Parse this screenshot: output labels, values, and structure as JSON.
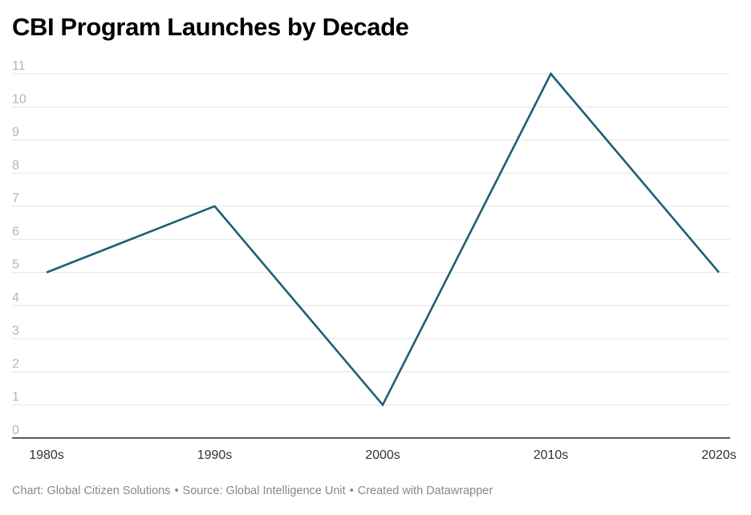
{
  "chart_data": {
    "type": "line",
    "title": "CBI Program Launches by Decade",
    "categories": [
      "1980s",
      "1990s",
      "2000s",
      "2010s",
      "2020s"
    ],
    "series": [
      {
        "name": "CBI Program Launches",
        "values": [
          5,
          7,
          1,
          11,
          5
        ]
      }
    ],
    "yticks": [
      0,
      1,
      2,
      3,
      4,
      5,
      6,
      7,
      8,
      9,
      10,
      11
    ],
    "ylim": [
      0,
      11
    ],
    "xlabel": "",
    "ylabel": "",
    "grid": true,
    "line_color": "#1f5f74"
  },
  "footer": {
    "chart_by": "Chart: Global Citizen Solutions",
    "source": "Source: Global Intelligence Unit",
    "created_with": "Created with Datawrapper",
    "separator": "•"
  }
}
